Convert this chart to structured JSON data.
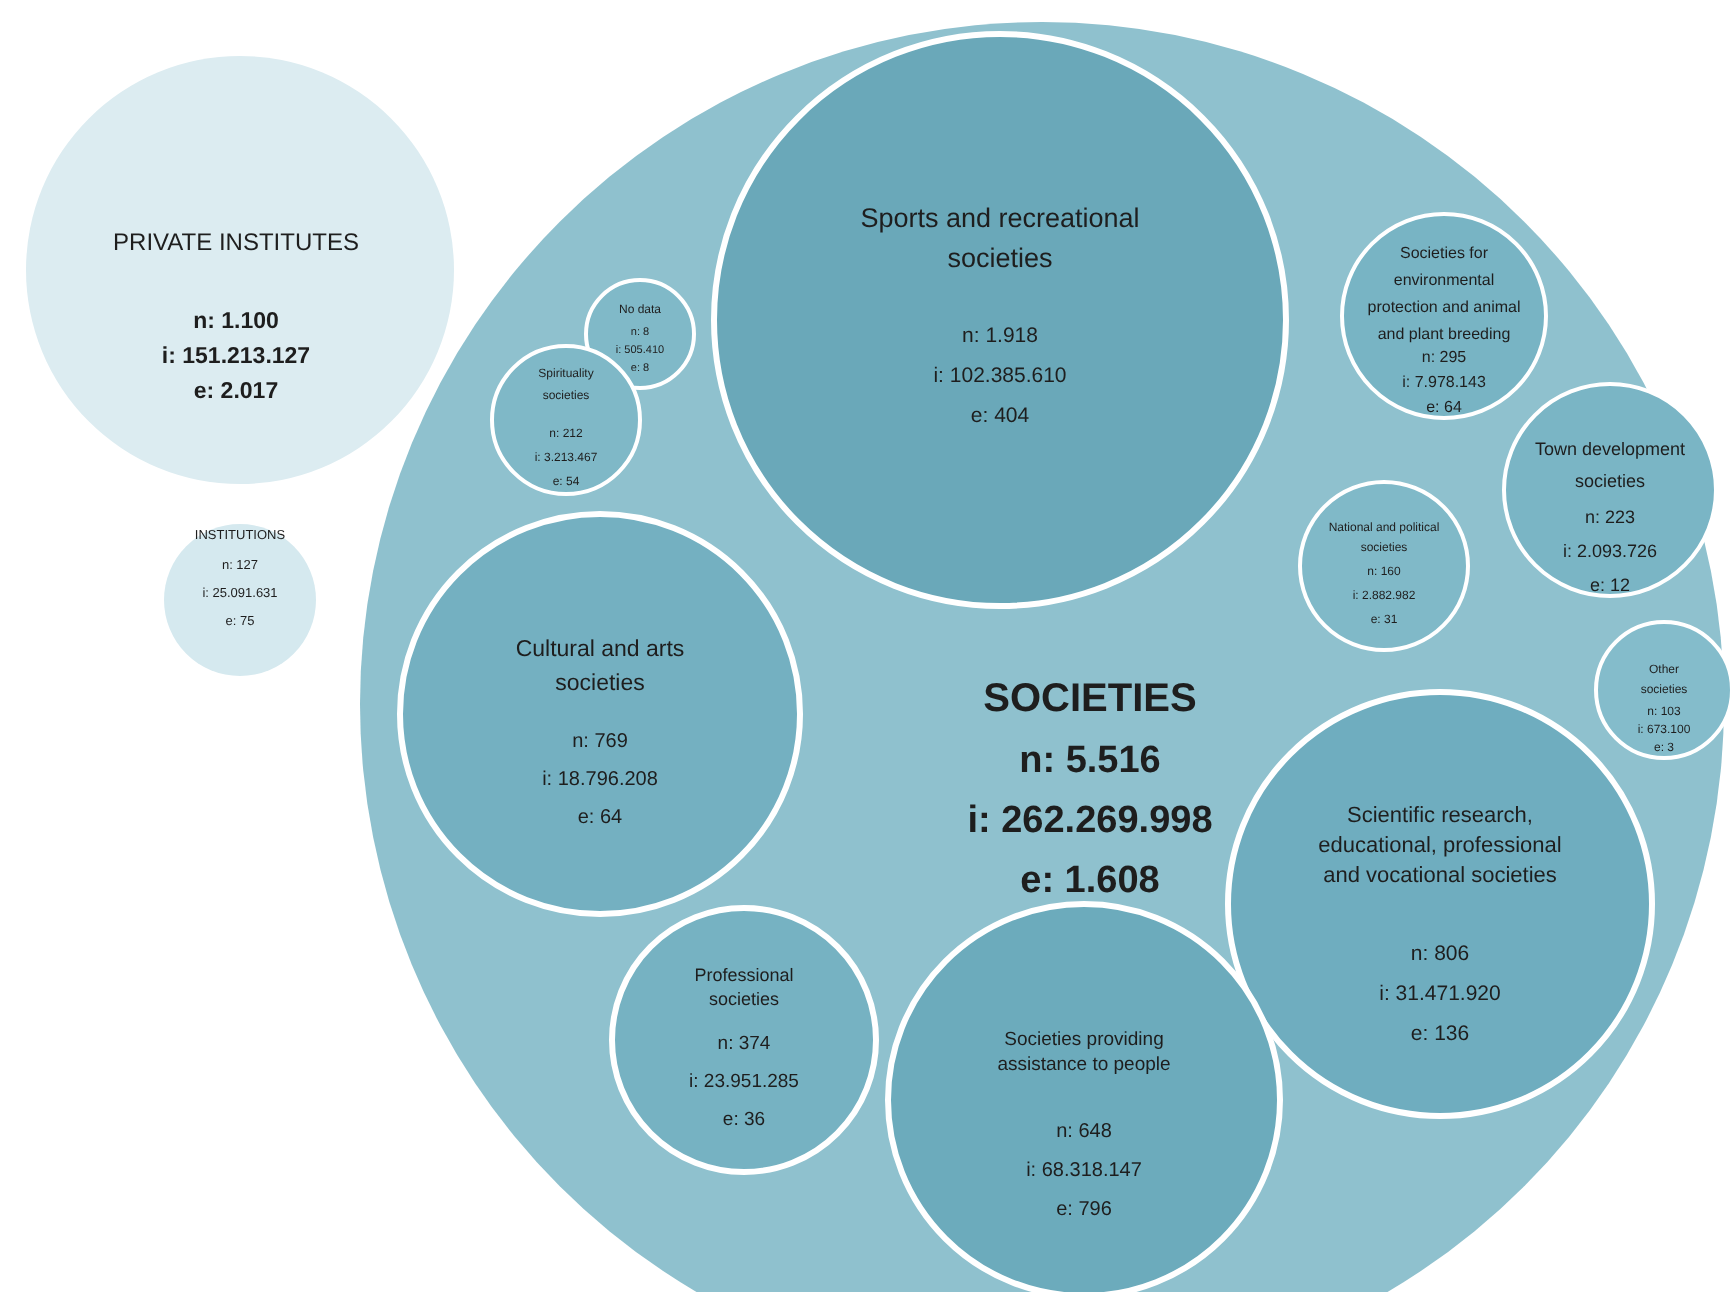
{
  "chart_data": {
    "type": "other",
    "categories": [
      "PRIVATE INSTITUTES",
      "INSTITUTIONS",
      "SOCIETIES",
      "Sports and recreational societies",
      "No data",
      "Spirituality societies",
      "Societies for environmental protection and animal and plant breeding",
      "Town development societies",
      "National and political societies",
      "Cultural and arts societies",
      "Other societies",
      "Scientific research, educational, professional and vocational societies",
      "Professional societies",
      "Societies providing assistance to people"
    ],
    "series": [
      {
        "values": [
          1100,
          127,
          5516,
          1918,
          8,
          212,
          295,
          223,
          160,
          769,
          103,
          806,
          374,
          648
        ],
        "value_labels": [
          "n: 1.100",
          "n: 127",
          "n: 5.516",
          "n: 1.918",
          "n: 8",
          "n: 212",
          "n: 295",
          "n: 223",
          "n: 160",
          "n: 769",
          "n: 103",
          "n: 806",
          "n: 374",
          "n: 648"
        ],
        "colors": [
          "#dcecf1",
          "#d5e9ef",
          "#8fc1ce",
          "#6aa8b9",
          "#80b9c8",
          "#7fb8c7",
          "#78b4c4",
          "#7ab5c5",
          "#80b9c8",
          "#74b0c1",
          "#84bccb",
          "#6fadbf",
          "#76b2c2",
          "#6cabbc"
        ]
      },
      {
        "values": [
          151213127,
          25091631,
          262269998,
          102385610,
          505410,
          3213467,
          7978143,
          2093726,
          2882982,
          18796208,
          673100,
          31471920,
          23951285,
          68318147
        ],
        "value_labels": [
          "i: 151.213.127",
          "i: 25.091.631",
          "i: 262.269.998",
          "i: 102.385.610",
          "i: 505.410",
          "i: 3.213.467",
          "i: 7.978.143",
          "i: 2.093.726",
          "i: 2.882.982",
          "i: 18.796.208",
          "i: 673.100",
          "i: 31.471.920",
          "i: 23.951.285",
          "i: 68.318.147"
        ]
      },
      {
        "values": [
          2017,
          75,
          1608,
          404,
          8,
          54,
          64,
          12,
          31,
          64,
          3,
          136,
          36,
          796
        ],
        "value_labels": [
          "e: 2.017",
          "e: 75",
          "e: 1.608",
          "e: 404",
          "e: 8",
          "e: 54",
          "e: 64",
          "e: 12",
          "e: 31",
          "e: 64",
          "e: 3",
          "e: 136",
          "e: 36",
          "e: 796"
        ]
      }
    ]
  }
}
